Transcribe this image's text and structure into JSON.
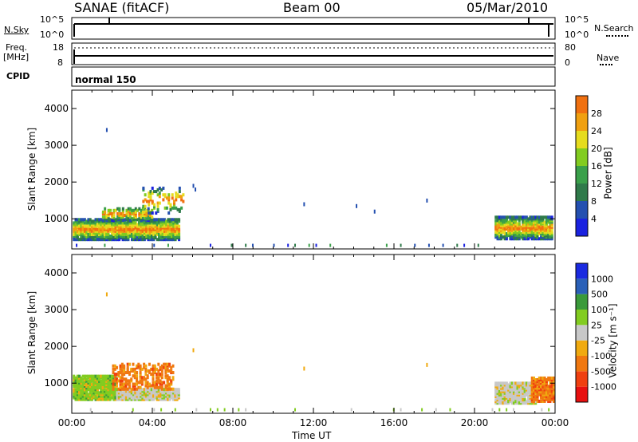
{
  "header": {
    "left": "SANAE (fitACF)",
    "center": "Beam 00",
    "right": "05/Mar/2010"
  },
  "strips": {
    "nsky_label": "N.Sky",
    "nsky_ticks": [
      "10^5",
      "10^0"
    ],
    "nsearch_label": "N.Search",
    "nsearch_ticks": [
      "10^5",
      "10^0"
    ],
    "freq_label": "Freq.",
    "freq_unit": "[MHz]",
    "freq_ticks": [
      "18",
      "8"
    ],
    "nave_label": "Nave",
    "nave_ticks": [
      "80",
      "0"
    ],
    "cpid_label": "CPID",
    "cpid_value": "normal 150"
  },
  "colors": {
    "power": [
      "#1a22e0",
      "#2450b0",
      "#2f7a4a",
      "#3aa04a",
      "#82cc20",
      "#e6dc1e",
      "#f0a010",
      "#f07010",
      "#e83c14",
      "#e81010"
    ],
    "velocity": [
      "#e81010",
      "#f04010",
      "#f07810",
      "#f0aa10",
      "#c8c8c8",
      "#82cc20",
      "#3a9a3a",
      "#2a60b8",
      "#1a2ae0"
    ]
  },
  "chart_data": [
    {
      "type": "heatmap",
      "title": "Power",
      "ylabel": "Slant Range [km]",
      "xlabel": "Time UT",
      "x_ticks": [
        "00:00",
        "04:00",
        "08:00",
        "12:00",
        "16:00",
        "20:00",
        "00:00"
      ],
      "y_ticks": [
        "1000",
        "2000",
        "3000",
        "4000"
      ],
      "ylim": [
        180,
        4500
      ],
      "colorbar_label": "Power [dB]",
      "colorbar_ticks": [
        "4",
        "8",
        "12",
        "16",
        "20",
        "24",
        "28"
      ]
    },
    {
      "type": "heatmap",
      "title": "Velocity",
      "ylabel": "Slant Range [km]",
      "xlabel": "Time UT",
      "x_ticks": [
        "00:00",
        "04:00",
        "08:00",
        "12:00",
        "16:00",
        "20:00",
        "00:00"
      ],
      "y_ticks": [
        "1000",
        "2000",
        "3000",
        "4000"
      ],
      "ylim": [
        180,
        4500
      ],
      "colorbar_label": "Velocity [m s⁻¹]",
      "colorbar_ticks": [
        "1000",
        "500",
        "100",
        "25",
        "-25",
        "-100",
        "-500",
        "-1000"
      ]
    }
  ],
  "footer": {
    "xlabel": "Time UT"
  }
}
